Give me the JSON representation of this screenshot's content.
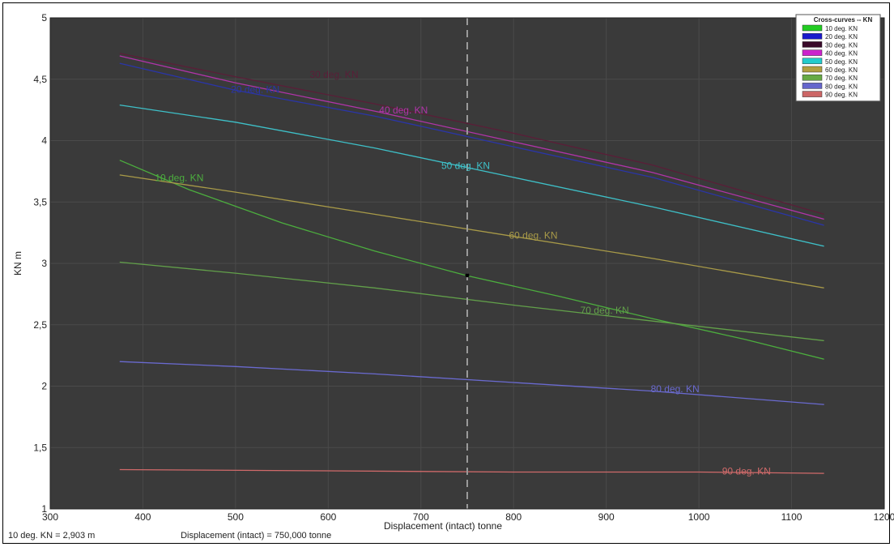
{
  "chart_data": {
    "type": "line",
    "title": "",
    "xlabel": "Displacement (intact)  tonne",
    "ylabel": "KN  m",
    "xlim": [
      300,
      1200
    ],
    "ylim": [
      1,
      5
    ],
    "xticks": [
      300,
      400,
      500,
      600,
      700,
      800,
      900,
      1000,
      1100,
      1200
    ],
    "yticks": [
      1,
      1.5,
      2,
      2.5,
      3,
      3.5,
      4,
      4.5,
      5
    ],
    "ytick_labels": [
      "1",
      "1,5",
      "2",
      "2,5",
      "3",
      "3,5",
      "4",
      "4,5",
      "5"
    ],
    "grid": true,
    "background": "#3a3a3a",
    "grid_color": "#4a4a4a",
    "cursor": {
      "x": 750,
      "y": 2.903,
      "color": "#9a9a9a"
    },
    "legend": {
      "title": "Cross-curves -- KN",
      "placement": "top-right",
      "entries": [
        {
          "label": "10 deg. KN",
          "color": "#22cc22"
        },
        {
          "label": "20 deg. KN",
          "color": "#1a1acc"
        },
        {
          "label": "30 deg. KN",
          "color": "#3a0a2a"
        },
        {
          "label": "40 deg. KN",
          "color": "#cc22cc"
        },
        {
          "label": "50 deg. KN",
          "color": "#22cccc"
        },
        {
          "label": "60 deg. KN",
          "color": "#b0a040"
        },
        {
          "label": "70 deg. KN",
          "color": "#66aa44"
        },
        {
          "label": "80 deg. KN",
          "color": "#6666cc"
        },
        {
          "label": "90 deg. KN",
          "color": "#cc6666"
        }
      ]
    },
    "series": [
      {
        "name": "10 deg. KN",
        "color": "#4cae3e",
        "x": [
          375,
          450,
          550,
          650,
          750,
          850,
          950,
          1050,
          1135
        ],
        "y": [
          3.84,
          3.6,
          3.33,
          3.1,
          2.9,
          2.73,
          2.55,
          2.38,
          2.22
        ],
        "label": "10 deg. KN",
        "label_at": [
          413,
          3.67
        ]
      },
      {
        "name": "20 deg. KN",
        "color": "#2a35a8",
        "x": [
          375,
          500,
          650,
          800,
          950,
          1135
        ],
        "y": [
          4.63,
          4.41,
          4.2,
          3.95,
          3.7,
          3.31
        ],
        "label": "20 deg. KN",
        "label_at": [
          495,
          4.39
        ]
      },
      {
        "name": "30 deg. KN",
        "color": "#5a1e38",
        "x": [
          375,
          500,
          650,
          800,
          950,
          1135
        ],
        "y": [
          4.71,
          4.52,
          4.3,
          4.06,
          3.8,
          3.4
        ],
        "label": "30 deg. KN",
        "label_at": [
          580,
          4.51
        ]
      },
      {
        "name": "40 deg. KN",
        "color": "#b034a8",
        "x": [
          375,
          500,
          650,
          800,
          950,
          1135
        ],
        "y": [
          4.69,
          4.47,
          4.24,
          3.99,
          3.74,
          3.36
        ],
        "label": "40 deg. KN",
        "label_at": [
          655,
          4.22
        ]
      },
      {
        "name": "50 deg. KN",
        "color": "#3ec0c8",
        "x": [
          375,
          500,
          650,
          800,
          950,
          1135
        ],
        "y": [
          4.29,
          4.15,
          3.94,
          3.7,
          3.46,
          3.14
        ],
        "label": "50 deg. KN",
        "label_at": [
          722,
          3.77
        ]
      },
      {
        "name": "60 deg. KN",
        "color": "#a89a48",
        "x": [
          375,
          500,
          650,
          800,
          950,
          1135
        ],
        "y": [
          3.72,
          3.58,
          3.4,
          3.22,
          3.04,
          2.8
        ],
        "label": "60 deg. KN",
        "label_at": [
          795,
          3.2
        ]
      },
      {
        "name": "70 deg. KN",
        "color": "#62a04a",
        "x": [
          375,
          500,
          650,
          800,
          950,
          1135
        ],
        "y": [
          3.01,
          2.92,
          2.8,
          2.66,
          2.53,
          2.37
        ],
        "label": "70 deg. KN",
        "label_at": [
          872,
          2.59
        ]
      },
      {
        "name": "80 deg. KN",
        "color": "#6a6ad0",
        "x": [
          375,
          500,
          650,
          800,
          950,
          1135
        ],
        "y": [
          2.2,
          2.16,
          2.1,
          2.03,
          1.96,
          1.85
        ],
        "label": "80 deg. KN",
        "label_at": [
          948,
          1.95
        ]
      },
      {
        "name": "90 deg. KN",
        "color": "#d06a6a",
        "x": [
          375,
          600,
          800,
          1000,
          1135
        ],
        "y": [
          1.32,
          1.31,
          1.3,
          1.3,
          1.29
        ],
        "label": "90 deg. KN",
        "label_at": [
          1025,
          1.28
        ]
      }
    ]
  },
  "status": {
    "kn_readout": "10 deg.  KN =  2,903 m",
    "displacement_readout": "Displacement (intact) =  750,000 tonne"
  }
}
